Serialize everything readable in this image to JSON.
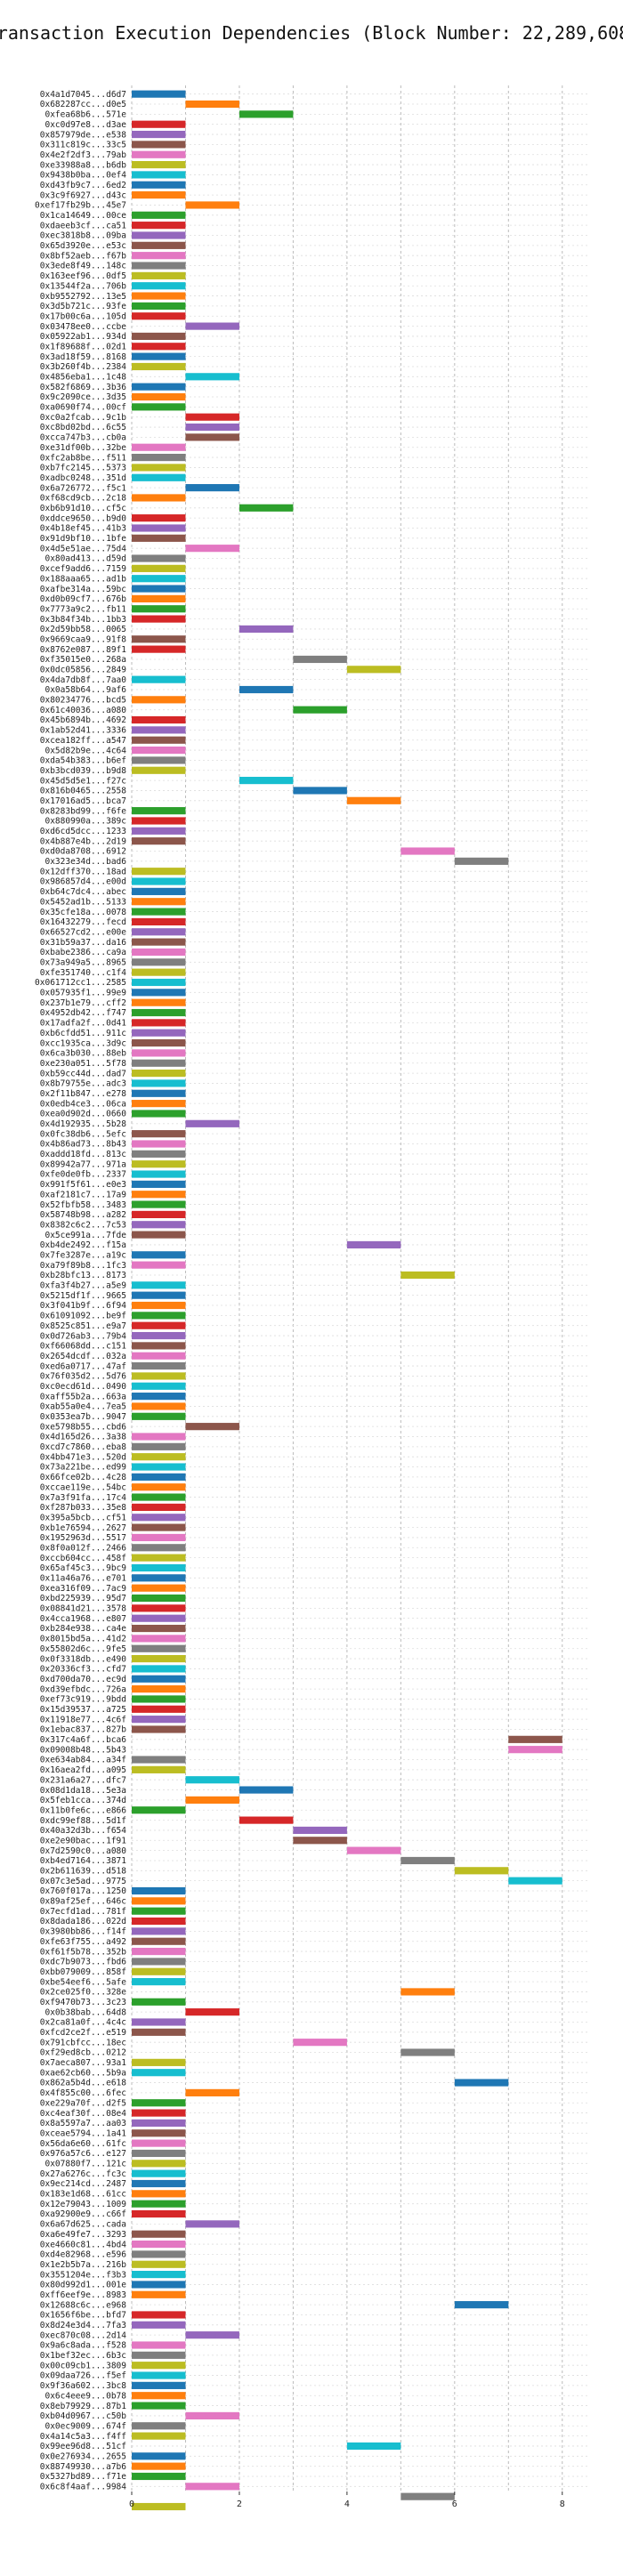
{
  "chart_data": {
    "type": "bar",
    "orientation": "horizontal",
    "title": "Transaction Execution Dependencies (Block Number: 22,289,608)",
    "xlabel": "",
    "ylabel": "",
    "xlim": [
      0,
      8.5
    ],
    "xticks": [
      0,
      2,
      4,
      6,
      8
    ],
    "grid": true,
    "colors": [
      "#1f77b4",
      "#ff7f0e",
      "#2ca02c",
      "#d62728",
      "#9467bd",
      "#8c564b",
      "#e377c2",
      "#7f7f7f",
      "#bcbd22",
      "#17becf"
    ],
    "transactions": [
      "0x4a1d7045...d6d7",
      "0x682287cc...d0e5",
      "0xfea68b6...571e",
      "0xc0d97e8...d3ae",
      "0x857979de...e538",
      "0x311c819c...33c5",
      "0x4e2f2df3...79ab",
      "0xe33988a8...b6db",
      "0x9438b0ba...0ef4",
      "0xd43fb9c7...6ed2",
      "0x3c9f6927...d43c",
      "0xef17fb29b...45e7",
      "0x1ca14649...00ce",
      "0xdaeeb3cf...ca51",
      "0xec3818b8...09ba",
      "0x65d3920e...e53c",
      "0x8bf52aeb...f67b",
      "0x3ede8f49...148c",
      "0x163eef96...0df5",
      "0x13544f2a...706b",
      "0xb9552792...13e5",
      "0x3d5b721c...93fe",
      "0x17b00c6a...105d",
      "0x03478ee0...ccbe",
      "0x05922ab1...934d",
      "0x1f89688f...02d1",
      "0x3ad18f59...8168",
      "0x3b260f4b...2384",
      "0x4856eba1...1c48",
      "0x582f6869...3b36",
      "0x9c2090ce...3d35",
      "0xa0690f74...00cf",
      "0xc0a2fcab...9c1b",
      "0xc8bd02bd...6c55",
      "0xcca747b3...cb0a",
      "0xe31df00b...32be",
      "0xfc2ab8be...f511",
      "0xb7fc2145...5373",
      "0xadbc0248...351d",
      "0x6a726772...f5c1",
      "0xf68cd9cb...2c18",
      "0xb6b91d10...cf5c",
      "0xddce9650...b9d0",
      "0x4b18ef45...41b3",
      "0x91d9bf10...1bfe",
      "0x4d5e51ae...75d4",
      "0x80ad413...d59d",
      "0xcef9add6...7159",
      "0x188aaa65...ad1b",
      "0xafbe314a...59bc",
      "0xd0b09cf7...676b",
      "0x7773a9c2...fb11",
      "0x3b84f34b...1bb3",
      "0x2d59bb58...0065",
      "0x9669caa9...91f8",
      "0x8762e087...89f1",
      "0xf35015e0...268a",
      "0x0dc05856...2849",
      "0x4da7db8f...7aa0",
      "0x0a58b64...9af6",
      "0x80234776...bcd5",
      "0x61c40036...a080",
      "0x45b6894b...4692",
      "0x1ab52d41...3336",
      "0xcea182ff...a547",
      "0x5d82b9e...4c64",
      "0xda54b383...b6ef",
      "0xb3bcd039...b9d8",
      "0x45d5d5e1...f27c",
      "0x816b0465...2558",
      "0x17016ad5...bca7",
      "0x8283bd99...f6fe",
      "0x880990a...389c",
      "0xd6cd5dcc...1233",
      "0x4b887e4b...2d19",
      "0xd0da8708...6912",
      "0x323e34d...bad6",
      "0x12dff370...18ad",
      "0x986857d4...e00d",
      "0xb64c7dc4...abec",
      "0x5452ad1b...5133",
      "0x35cfe18a...0078",
      "0x16432279...fecd",
      "0x66527cd2...e00e",
      "0x31b59a37...da16",
      "0xbabe2386...ca9a",
      "0x73a949a5...8965",
      "0xfe351740...c1f4",
      "0x061712cc1...2585",
      "0x057935f1...99e9",
      "0x237b1e79...cff2",
      "0x4952db42...f747",
      "0x17adfa2f...0d41",
      "0xb6cfdd51...911c",
      "0xcc1935ca...3d9c",
      "0x6ca3b030...88eb",
      "0xe230a051...5f78",
      "0xb59cc44d...dad7",
      "0x8b79755e...adc3",
      "0x2f11b847...e278",
      "0x0edb4ce3...06ca",
      "0xea0d902d...0660",
      "0x4d192935...5b28",
      "0x0fc38db6...5efc",
      "0x4b86ad73...8b43",
      "0xaddd18fd...813c",
      "0x89942a77...971a",
      "0xfe0de0fb...2337",
      "0x991f5f61...e0e3",
      "0xaf2181c7...17a9",
      "0x52fbfb58...3483",
      "0x58748b98...a282",
      "0x8382c6c2...7c53",
      "0x5ce991a...7fde",
      "0xb4de2492...f15a",
      "0x7fe3287e...a19c",
      "0xa79f89b8...1fc3",
      "0xb28bfc13...8173",
      "0xfa3f4b27...a5e9",
      "0x5215df1f...9665",
      "0x3f041b9f...6f94",
      "0x61091092...be9f",
      "0x8525c851...e9a7",
      "0x0d726ab3...79b4",
      "0xf66068dd...c151",
      "0x2654dcdf...032a",
      "0xed6a0717...47af",
      "0x76f035d2...5d76",
      "0xc0ecd61d...0490",
      "0xaff55b2a...663a",
      "0xab55a0e4...7ea5",
      "0x0353ea7b...9047",
      "0xe5798b55...cbd6",
      "0x4d165d26...3a38",
      "0xcd7c7860...eba8",
      "0x4bb471e3...520d",
      "0x73a221be...ed99",
      "0x66fce02b...4c28",
      "0xccae119e...54bc",
      "0x7a3f91fa...17c4",
      "0xf287b033...35e8",
      "0x395a5bcb...cf51",
      "0xb1e76594...2627",
      "0x1952963d...5517",
      "0x8f0a012f...2466",
      "0xccb604cc...458f",
      "0x65af45c3...9bc9",
      "0x11a46a76...e701",
      "0xea316f09...7ac9",
      "0xbd225939...95d7",
      "0x08841d21...3578",
      "0x4cca1968...e807",
      "0xb284e938...ca4e",
      "0x8015bd5a...41d2",
      "0x55802d6c...9fe5",
      "0x0f3318db...e490",
      "0x20336cf3...cfd7",
      "0xd700da70...ec9d",
      "0xd39efbdc...726a",
      "0xef73c919...9bdd",
      "0x15d39537...a725",
      "0x11918e77...4c6f",
      "0x1ebac837...827b",
      "0x317c4a6f...bca6",
      "0x09008b48...5b43",
      "0xe634ab84...a34f",
      "0x16aea2fd...a095",
      "0x231a6a27...dfc7",
      "0x08d1da18...5e3a",
      "0x5feb1cca...374d",
      "0x11b0fe6c...e866",
      "0xdc99ef88...5d1f",
      "0x40a32d3b...f654",
      "0xe2e90bac...1f91",
      "0x7d2590c0...a080",
      "0xb4ed7164...3871",
      "0x2b611639...d518",
      "0x07c3e5ad...9775",
      "0x760f017a...1250",
      "0x89af25ef...646c",
      "0x7ecfd1ad...781f",
      "0x8dada186...022d",
      "0x3980bb86...f14f",
      "0xfe63f755...a492",
      "0xf61f5b78...352b",
      "0xdc7b9073...fbd6",
      "0xbb079009...858f",
      "0xbe54eef6...5afe",
      "0x2ce025f0...328e",
      "0xf9470b73...3c23",
      "0x0b38bab...64d8",
      "0x2ca81a0f...4c4c",
      "0xfcd2ce2f...e519",
      "0x791cbfcc...18ec",
      "0xf29ed8cb...0212",
      "0x7aeca807...93a1",
      "0xae62cb60...5b9a",
      "0x862a5b4d...e618",
      "0x4f855c00...6fec",
      "0xe229a70f...d2f5",
      "0xc4eaf30f...08e4",
      "0x8a5597a7...aa03",
      "0xceae5794...1a41",
      "0x56da6e60...61fc",
      "0x976a57c6...e127",
      "0x07880f7...121c",
      "0x27a6276c...fc3c",
      "0x9ec214cd...2487",
      "0x183e1d68...61cc",
      "0x12e79043...1009",
      "0xa92900e9...c66f",
      "0x6a67d625...cada",
      "0xa6e49fe7...3293",
      "0xe4660c81...4bd4",
      "0xd4e82968...e596",
      "0x1e2b5b7a...216b",
      "0x3551204e...f3b3",
      "0x80d992d1...001e",
      "0xff6eef9e...8983",
      "0x12688c6c...e968",
      "0x1656f6be...bfd7",
      "0x8d24e3d4...7fa3",
      "0xec870c08...2d14",
      "0x9a6c8ada...f528",
      "0x1bef32ec...6b3c",
      "0x00c09cb1...3809",
      "0x09daa726...f5ef",
      "0x9f36a602...3bc8",
      "0x6c4eee9...0b78",
      "0x8eb79929...87b1",
      "0xb04d0967...c50b",
      "0x0ec9009...674f",
      "0x4a14c5a3...f4ff",
      "0x99ee96d8...51cf",
      "0x0e276934...2655",
      "0x88749930...a7b6",
      "0x5327bd89...f71e",
      "0x6c8f4aaf...9984"
    ],
    "bars": [
      [
        0,
        0,
        0
      ],
      [
        1,
        1,
        1
      ],
      [
        2,
        2,
        2
      ],
      [
        3,
        0,
        3
      ],
      [
        4,
        0,
        4
      ],
      [
        5,
        0,
        5
      ],
      [
        6,
        0,
        6
      ],
      [
        7,
        0,
        8
      ],
      [
        8,
        0,
        9
      ],
      [
        9,
        0,
        0
      ],
      [
        10,
        0,
        1
      ],
      [
        11,
        1,
        1
      ],
      [
        12,
        0,
        2
      ],
      [
        13,
        0,
        3
      ],
      [
        14,
        0,
        4
      ],
      [
        15,
        0,
        5
      ],
      [
        16,
        0,
        6
      ],
      [
        17,
        0,
        7
      ],
      [
        18,
        0,
        8
      ],
      [
        19,
        0,
        9
      ],
      [
        20,
        0,
        1
      ],
      [
        21,
        0,
        2
      ],
      [
        22,
        0,
        3
      ],
      [
        23,
        1,
        4
      ],
      [
        24,
        0,
        5
      ],
      [
        25,
        0,
        3
      ],
      [
        26,
        0,
        0
      ],
      [
        27,
        0,
        8
      ],
      [
        28,
        1,
        9
      ],
      [
        29,
        0,
        0
      ],
      [
        30,
        0,
        1
      ],
      [
        31,
        0,
        2
      ],
      [
        32,
        1,
        3
      ],
      [
        33,
        1,
        4
      ],
      [
        34,
        1,
        5
      ],
      [
        35,
        0,
        6
      ],
      [
        36,
        0,
        7
      ],
      [
        37,
        0,
        8
      ],
      [
        38,
        0,
        9
      ],
      [
        39,
        1,
        0
      ],
      [
        40,
        0,
        1
      ],
      [
        41,
        2,
        2
      ],
      [
        42,
        0,
        3
      ],
      [
        43,
        0,
        4
      ],
      [
        44,
        0,
        5
      ],
      [
        45,
        1,
        6
      ],
      [
        46,
        0,
        7
      ],
      [
        47,
        0,
        8
      ],
      [
        48,
        0,
        9
      ],
      [
        49,
        0,
        0
      ],
      [
        50,
        0,
        1
      ],
      [
        51,
        0,
        2
      ],
      [
        52,
        0,
        3
      ],
      [
        53,
        2,
        4
      ],
      [
        54,
        0,
        5
      ],
      [
        55,
        0,
        3
      ],
      [
        56,
        3,
        7
      ],
      [
        57,
        4,
        8
      ],
      [
        58,
        0,
        9
      ],
      [
        59,
        2,
        0
      ],
      [
        60,
        0,
        1
      ],
      [
        61,
        3,
        2
      ],
      [
        62,
        0,
        3
      ],
      [
        63,
        0,
        4
      ],
      [
        64,
        0,
        5
      ],
      [
        65,
        0,
        6
      ],
      [
        66,
        0,
        7
      ],
      [
        67,
        0,
        8
      ],
      [
        68,
        2,
        9
      ],
      [
        69,
        3,
        0
      ],
      [
        70,
        4,
        1
      ],
      [
        71,
        0,
        2
      ],
      [
        72,
        0,
        3
      ],
      [
        73,
        0,
        4
      ],
      [
        74,
        0,
        5
      ],
      [
        75,
        5,
        6
      ],
      [
        76,
        6,
        7
      ],
      [
        77,
        0,
        8
      ],
      [
        78,
        0,
        9
      ],
      [
        79,
        0,
        0
      ],
      [
        80,
        0,
        1
      ],
      [
        81,
        0,
        2
      ],
      [
        82,
        0,
        3
      ],
      [
        83,
        0,
        4
      ],
      [
        84,
        0,
        5
      ],
      [
        85,
        0,
        6
      ],
      [
        86,
        0,
        7
      ],
      [
        87,
        0,
        8
      ],
      [
        88,
        0,
        9
      ],
      [
        89,
        0,
        0
      ],
      [
        90,
        0,
        1
      ],
      [
        91,
        0,
        2
      ],
      [
        92,
        0,
        3
      ],
      [
        93,
        0,
        4
      ],
      [
        94,
        0,
        5
      ],
      [
        95,
        0,
        6
      ],
      [
        96,
        0,
        7
      ],
      [
        97,
        0,
        8
      ],
      [
        98,
        0,
        9
      ],
      [
        99,
        0,
        0
      ],
      [
        100,
        0,
        1
      ],
      [
        101,
        0,
        2
      ],
      [
        102,
        1,
        4
      ],
      [
        103,
        0,
        5
      ],
      [
        104,
        0,
        6
      ],
      [
        105,
        0,
        7
      ],
      [
        106,
        0,
        8
      ],
      [
        107,
        0,
        9
      ],
      [
        108,
        0,
        0
      ],
      [
        109,
        0,
        1
      ],
      [
        110,
        0,
        2
      ],
      [
        111,
        0,
        3
      ],
      [
        112,
        0,
        4
      ],
      [
        113,
        0,
        5
      ],
      [
        114,
        4,
        4
      ],
      [
        115,
        0,
        0
      ],
      [
        116,
        0,
        6
      ],
      [
        117,
        5,
        8
      ],
      [
        118,
        0,
        9
      ],
      [
        119,
        0,
        0
      ],
      [
        120,
        0,
        1
      ],
      [
        121,
        0,
        2
      ],
      [
        122,
        0,
        3
      ],
      [
        123,
        0,
        4
      ],
      [
        124,
        0,
        5
      ],
      [
        125,
        0,
        6
      ],
      [
        126,
        0,
        7
      ],
      [
        127,
        0,
        8
      ],
      [
        128,
        0,
        9
      ],
      [
        129,
        0,
        0
      ],
      [
        130,
        0,
        1
      ],
      [
        131,
        0,
        2
      ],
      [
        132,
        1,
        5
      ],
      [
        133,
        0,
        6
      ],
      [
        134,
        0,
        7
      ],
      [
        135,
        0,
        8
      ],
      [
        136,
        0,
        9
      ],
      [
        137,
        0,
        0
      ],
      [
        138,
        0,
        1
      ],
      [
        139,
        0,
        2
      ],
      [
        140,
        0,
        3
      ],
      [
        141,
        0,
        4
      ],
      [
        142,
        0,
        5
      ],
      [
        143,
        0,
        6
      ],
      [
        144,
        0,
        7
      ],
      [
        145,
        0,
        8
      ],
      [
        146,
        0,
        9
      ],
      [
        147,
        0,
        0
      ],
      [
        148,
        0,
        1
      ],
      [
        149,
        0,
        2
      ],
      [
        150,
        0,
        3
      ],
      [
        151,
        0,
        4
      ],
      [
        152,
        0,
        5
      ],
      [
        153,
        0,
        6
      ],
      [
        154,
        0,
        7
      ],
      [
        155,
        0,
        8
      ],
      [
        156,
        0,
        9
      ],
      [
        157,
        0,
        0
      ],
      [
        158,
        0,
        1
      ],
      [
        159,
        0,
        2
      ],
      [
        160,
        0,
        3
      ],
      [
        161,
        0,
        4
      ],
      [
        162,
        0,
        5
      ],
      [
        163,
        7,
        5
      ],
      [
        164,
        7,
        6
      ],
      [
        165,
        0,
        7
      ],
      [
        166,
        0,
        8
      ],
      [
        167,
        1,
        9
      ],
      [
        168,
        2,
        0
      ],
      [
        169,
        1,
        1
      ],
      [
        170,
        0,
        2
      ],
      [
        171,
        2,
        3
      ],
      [
        172,
        3,
        4
      ],
      [
        173,
        3,
        5
      ],
      [
        174,
        4,
        6
      ],
      [
        175,
        5,
        7
      ],
      [
        176,
        6,
        8
      ],
      [
        177,
        7,
        9
      ],
      [
        178,
        0,
        0
      ],
      [
        179,
        0,
        1
      ],
      [
        180,
        0,
        2
      ],
      [
        181,
        0,
        3
      ],
      [
        182,
        0,
        4
      ],
      [
        183,
        0,
        5
      ],
      [
        184,
        0,
        6
      ],
      [
        185,
        0,
        7
      ],
      [
        186,
        0,
        8
      ],
      [
        187,
        0,
        9
      ],
      [
        188,
        5,
        1
      ],
      [
        189,
        0,
        2
      ],
      [
        190,
        1,
        3
      ],
      [
        191,
        0,
        4
      ],
      [
        192,
        0,
        5
      ],
      [
        193,
        3,
        6
      ],
      [
        194,
        5,
        7
      ],
      [
        195,
        0,
        8
      ],
      [
        196,
        0,
        9
      ],
      [
        197,
        6,
        0
      ],
      [
        198,
        1,
        1
      ],
      [
        199,
        0,
        2
      ],
      [
        200,
        0,
        3
      ],
      [
        201,
        0,
        4
      ],
      [
        202,
        0,
        5
      ],
      [
        203,
        0,
        6
      ],
      [
        204,
        0,
        7
      ],
      [
        205,
        0,
        8
      ],
      [
        206,
        0,
        9
      ],
      [
        207,
        0,
        0
      ],
      [
        208,
        0,
        1
      ],
      [
        209,
        0,
        2
      ],
      [
        210,
        0,
        3
      ],
      [
        211,
        1,
        4
      ],
      [
        212,
        0,
        5
      ],
      [
        213,
        0,
        6
      ],
      [
        214,
        0,
        7
      ],
      [
        215,
        0,
        8
      ],
      [
        216,
        0,
        9
      ],
      [
        217,
        0,
        0
      ],
      [
        218,
        0,
        1
      ],
      [
        219,
        6,
        0
      ],
      [
        220,
        0,
        3
      ],
      [
        221,
        0,
        4
      ],
      [
        222,
        1,
        4
      ],
      [
        223,
        0,
        6
      ],
      [
        224,
        0,
        7
      ],
      [
        225,
        0,
        8
      ],
      [
        226,
        0,
        9
      ],
      [
        227,
        0,
        0
      ],
      [
        228,
        0,
        1
      ],
      [
        229,
        0,
        2
      ],
      [
        230,
        1,
        6
      ],
      [
        231,
        0,
        7
      ],
      [
        232,
        0,
        8
      ],
      [
        233,
        4,
        9
      ],
      [
        234,
        0,
        0
      ],
      [
        235,
        0,
        1
      ],
      [
        236,
        0,
        2
      ],
      [
        237,
        1,
        6
      ],
      [
        238,
        5,
        7
      ],
      [
        239,
        0,
        8
      ]
    ]
  }
}
